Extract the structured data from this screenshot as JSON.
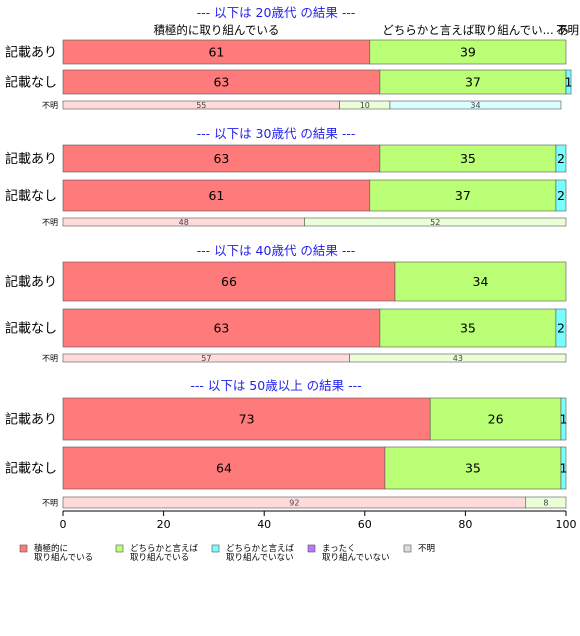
{
  "chart_data": {
    "type": "bar",
    "orientation": "horizontal",
    "stacked": true,
    "xlim": [
      0,
      100
    ],
    "x_ticks": [
      "0",
      "20",
      "40",
      "60",
      "80",
      "100"
    ],
    "colors": {
      "積極的に取り組んでいる": "#ff7a7a",
      "どちらかと言えば取り組んでいる": "#bbff77",
      "どちらかと言えば取り組んでいない": "#77ffff",
      "まったく取り組んでいない": "#bb77ff",
      "不明": "#dddddd"
    },
    "legend": {
      "placement": "bottom",
      "items": [
        {
          "key": "積極的に取り組んでいる",
          "line1": "積極的に",
          "line2": "取り組んでいる"
        },
        {
          "key": "どちらかと言えば取り組んでいる",
          "line1": "どちらかと言えば",
          "line2": "取り組んでいる"
        },
        {
          "key": "どちらかと言えば取り組んでいない",
          "line1": "どちらかと言えば",
          "line2": "取り組んでいない"
        },
        {
          "key": "まったく取り組んでいない",
          "line1": "まったく",
          "line2": "取り組んでいない"
        },
        {
          "key": "不明",
          "line1": "不明",
          "line2": ""
        }
      ]
    },
    "panels": [
      {
        "title": "--- 以下は 20歳代 の結果 ---",
        "header_labels": [
          {
            "text": "積極的に取り組んでいる",
            "at": 30.5
          },
          {
            "text": "どちらかと言えば取り組んでい...",
            "at": 80.5
          },
          {
            "text": "あ",
            "at": 99.4
          },
          {
            "text": "不明",
            "at": 100.3
          }
        ],
        "rows": [
          {
            "label": "記載あり",
            "values": [
              61,
              39,
              0,
              0,
              0
            ],
            "labels": [
              "61",
              "39",
              "",
              "",
              ""
            ],
            "size": "large"
          },
          {
            "label": "記載なし",
            "values": [
              63,
              37,
              1,
              0,
              0
            ],
            "labels": [
              "63",
              "37",
              "1",
              "",
              ""
            ],
            "size": "large"
          },
          {
            "label": "不明",
            "values": [
              55,
              10,
              34,
              0,
              0
            ],
            "labels": [
              "55",
              "10",
              "34",
              "",
              ""
            ],
            "size": "small"
          }
        ]
      },
      {
        "title": "--- 以下は 30歳代 の結果 ---",
        "header_labels": [],
        "rows": [
          {
            "label": "記載あり",
            "values": [
              63,
              35,
              2,
              0,
              0
            ],
            "labels": [
              "63",
              "35",
              "2",
              "",
              ""
            ],
            "size": "large"
          },
          {
            "label": "記載なし",
            "values": [
              61,
              37,
              2,
              0,
              0
            ],
            "labels": [
              "61",
              "37",
              "2",
              "",
              ""
            ],
            "size": "large"
          },
          {
            "label": "不明",
            "values": [
              48,
              52,
              0,
              0,
              0
            ],
            "labels": [
              "48",
              "52",
              "",
              "",
              ""
            ],
            "size": "small"
          }
        ]
      },
      {
        "title": "--- 以下は 40歳代 の結果 ---",
        "header_labels": [],
        "rows": [
          {
            "label": "記載あり",
            "values": [
              66,
              34,
              0,
              0,
              0
            ],
            "labels": [
              "66",
              "34",
              "",
              "",
              ""
            ],
            "size": "large"
          },
          {
            "label": "記載なし",
            "values": [
              63,
              35,
              2,
              0,
              0
            ],
            "labels": [
              "63",
              "35",
              "2",
              "",
              ""
            ],
            "size": "large"
          },
          {
            "label": "不明",
            "values": [
              57,
              43,
              0,
              0,
              0
            ],
            "labels": [
              "57",
              "43",
              "",
              "",
              ""
            ],
            "size": "small"
          }
        ]
      },
      {
        "title": "--- 以下は 50歳以上 の結果 ---",
        "header_labels": [],
        "rows": [
          {
            "label": "記載あり",
            "values": [
              73,
              26,
              1,
              0,
              0
            ],
            "labels": [
              "73",
              "26",
              "1",
              "",
              ""
            ],
            "size": "large"
          },
          {
            "label": "記載なし",
            "values": [
              64,
              35,
              1,
              0,
              0
            ],
            "labels": [
              "64",
              "35",
              "1",
              "",
              ""
            ],
            "size": "large"
          },
          {
            "label": "不明",
            "values": [
              92,
              8,
              0,
              0,
              0
            ],
            "labels": [
              "92",
              "8",
              "",
              "",
              ""
            ],
            "size": "small"
          }
        ]
      }
    ]
  }
}
